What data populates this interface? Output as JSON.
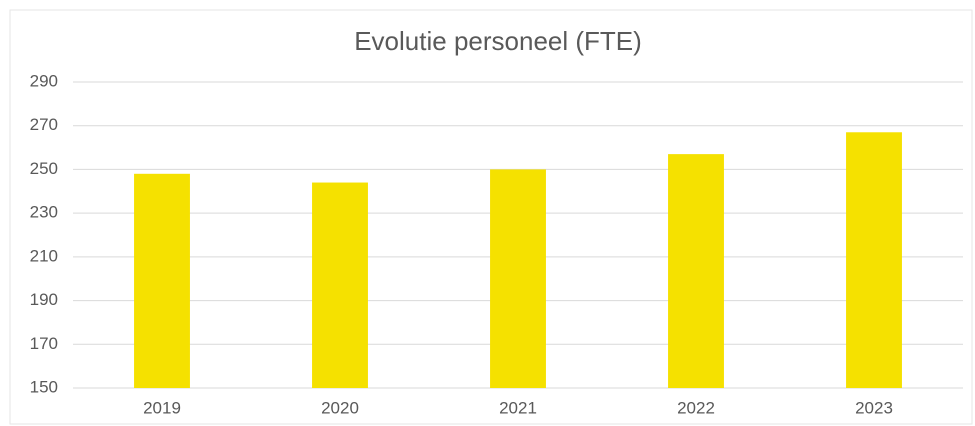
{
  "chart_data": {
    "type": "bar",
    "title": "Evolutie personeel (FTE)",
    "categories": [
      "2019",
      "2020",
      "2021",
      "2022",
      "2023"
    ],
    "values": [
      248,
      244,
      250,
      257,
      267
    ],
    "color": "#f5e100",
    "ylim": [
      150,
      290
    ],
    "yticks": [
      150,
      170,
      190,
      210,
      230,
      250,
      270,
      290
    ],
    "grid": true
  }
}
